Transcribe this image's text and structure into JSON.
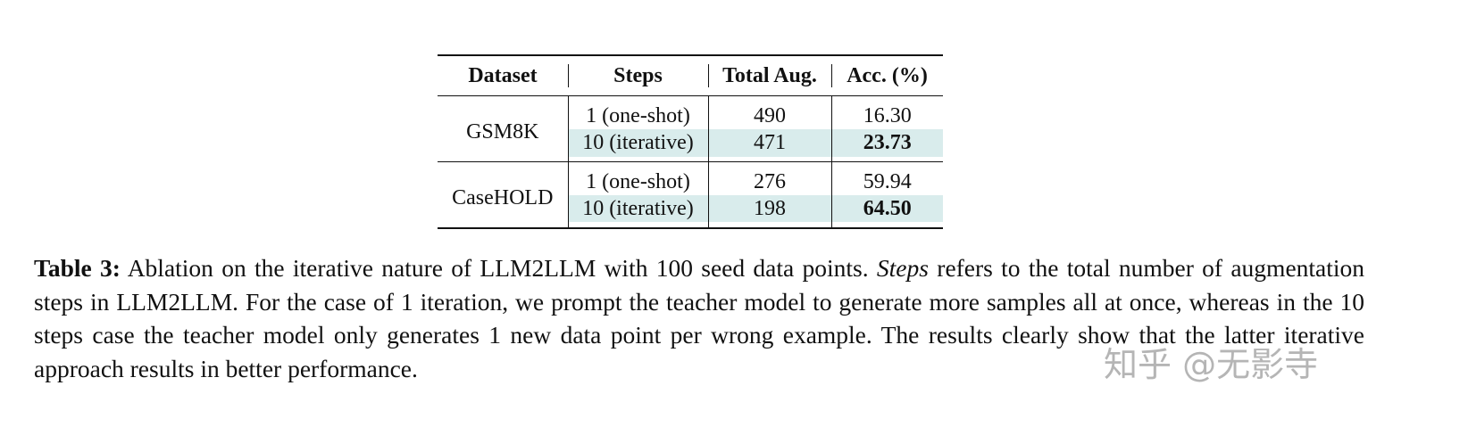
{
  "table": {
    "header": [
      "Dataset",
      "Steps",
      "Total Aug.",
      "Acc. (%)"
    ],
    "groups": [
      {
        "dataset": "GSM8K",
        "rows": [
          [
            "1 (one-shot)",
            "490",
            "16.30"
          ],
          [
            "10 (iterative)",
            "471",
            "23.73"
          ]
        ]
      },
      {
        "dataset": "CaseHOLD",
        "rows": [
          [
            "1 (one-shot)",
            "276",
            "59.94"
          ],
          [
            "10 (iterative)",
            "198",
            "64.50"
          ]
        ]
      }
    ]
  },
  "caption": {
    "label": "Table 3:",
    "text_before": "Ablation on the iterative nature of LLM2LLM with 100 seed data points.",
    "emphasis": "Steps",
    "text_after": "refers to the total number of augmentation steps in LLM2LLM. For the case of 1 iteration, we prompt the teacher model to generate more samples all at once, whereas in the 10 steps case the teacher model only generates 1 new data point per wrong example. The results clearly show that the latter iterative approach results in better performance."
  },
  "watermark": "知乎 @无影寺"
}
